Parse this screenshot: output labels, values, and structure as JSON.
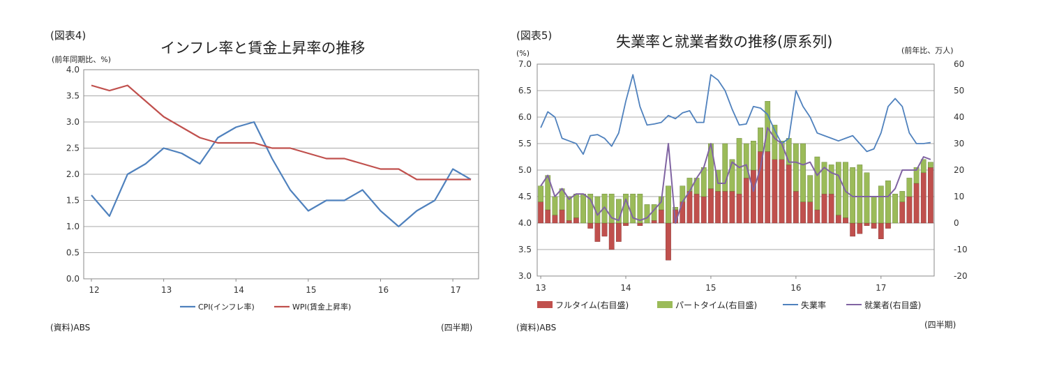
{
  "left": {
    "figure_no": "(図表4)",
    "title": "インフレ率と賃金上昇率の推移",
    "unit": "(前年同期比、%)",
    "source": "(資料)ABS",
    "period_note": "(四半期)"
  },
  "right": {
    "figure_no": "(図表5)",
    "title": "失業率と就業者数の推移(原系列)",
    "unit_left": "(%)",
    "unit_right": "(前年比、万人)",
    "source": "(資料)ABS",
    "period_note": "(四半期)"
  },
  "chart_data": [
    {
      "type": "line",
      "title": "インフレ率と賃金上昇率の推移",
      "ylabel": "(前年同期比、%)",
      "ylim": [
        0,
        4
      ],
      "yticks": [
        "0.0",
        "0.5",
        "1.0",
        "1.5",
        "2.0",
        "2.5",
        "3.0",
        "3.5",
        "4.0"
      ],
      "xtick_labels": [
        "12",
        "13",
        "14",
        "15",
        "16",
        "17"
      ],
      "x_start_quarter": "2012Q1",
      "grid": true,
      "legend_position": "bottom",
      "colors": {
        "cpi": "#4f81bd",
        "wpi": "#c0504d"
      },
      "series": [
        {
          "name": "CPI(インフレ率)",
          "values": [
            1.6,
            1.2,
            2.0,
            2.2,
            2.5,
            2.4,
            2.2,
            2.7,
            2.9,
            3.0,
            2.3,
            1.7,
            1.3,
            1.5,
            1.5,
            1.7,
            1.3,
            1.0,
            1.3,
            1.5,
            2.1,
            1.9
          ]
        },
        {
          "name": "WPI(賃金上昇率)",
          "values": [
            3.7,
            3.6,
            3.7,
            3.4,
            3.1,
            2.9,
            2.7,
            2.6,
            2.6,
            2.6,
            2.5,
            2.5,
            2.4,
            2.3,
            2.3,
            2.2,
            2.1,
            2.1,
            1.9,
            1.9,
            1.9,
            1.9
          ]
        }
      ]
    },
    {
      "type": "bar+line",
      "title": "失業率と就業者数の推移(原系列)",
      "ylim_left": [
        3.0,
        7.0
      ],
      "ylim_right": [
        -20,
        60
      ],
      "yticks_left": [
        "3.0",
        "3.5",
        "4.0",
        "4.5",
        "5.0",
        "5.5",
        "6.0",
        "6.5",
        "7.0"
      ],
      "yticks_right": [
        "-20",
        "-10",
        "0",
        "10",
        "20",
        "30",
        "40",
        "50",
        "60"
      ],
      "xtick_labels": [
        "13",
        "14",
        "15",
        "16",
        "17"
      ],
      "x_start_month": "2013-01",
      "grid": true,
      "legend_position": "bottom",
      "colors": {
        "fulltime": "#c0504d",
        "parttime": "#9bbb59",
        "unemployment": "#4f81bd",
        "employed": "#8064a2"
      },
      "series": [
        {
          "name": "フルタイム(右目盛)",
          "axis": "right",
          "values": [
            8,
            5,
            3,
            5,
            1,
            2,
            0,
            -2,
            -7,
            -5,
            -10,
            -7,
            -1,
            0,
            -1,
            0,
            1,
            5,
            -14,
            5,
            8,
            12,
            11,
            10,
            13,
            12,
            12,
            12,
            11,
            17,
            20,
            27,
            27,
            24,
            24,
            22,
            12,
            8,
            8,
            5,
            11,
            11,
            3,
            2,
            -5,
            -4,
            -1,
            -2,
            -6,
            -2,
            0,
            8,
            10,
            15,
            19,
            21
          ]
        },
        {
          "name": "パートタイム(右目盛)",
          "axis": "right",
          "values": [
            6,
            13,
            7,
            8,
            9,
            9,
            11,
            11,
            10,
            11,
            11,
            9,
            11,
            11,
            11,
            7,
            6,
            5,
            14,
            1,
            6,
            5,
            6,
            11,
            17,
            8,
            18,
            12,
            21,
            13,
            11,
            9,
            19,
            13,
            7,
            10,
            18,
            22,
            10,
            20,
            12,
            11,
            20,
            21,
            21,
            22,
            19,
            10,
            14,
            16,
            11,
            4,
            7,
            6,
            5,
            2
          ]
        },
        {
          "name": "失業率",
          "axis": "left",
          "values": [
            5.8,
            6.1,
            6.0,
            5.6,
            5.55,
            5.5,
            5.3,
            5.65,
            5.67,
            5.6,
            5.45,
            5.7,
            6.3,
            6.8,
            6.2,
            5.85,
            5.87,
            5.9,
            6.03,
            5.97,
            6.08,
            6.12,
            5.9,
            5.9,
            6.8,
            6.7,
            6.5,
            6.15,
            5.85,
            5.87,
            6.2,
            6.17,
            6.05,
            5.75,
            5.5,
            5.6,
            6.5,
            6.2,
            6.0,
            5.7,
            5.65,
            5.6,
            5.55,
            5.6,
            5.65,
            5.5,
            5.35,
            5.4,
            5.7,
            6.2,
            6.35,
            6.2,
            5.7,
            5.5,
            5.5,
            5.52
          ]
        },
        {
          "name": "就業者(右目盛)",
          "axis": "right",
          "values": [
            14,
            18,
            10,
            13,
            9,
            11,
            11,
            9,
            3,
            6,
            2,
            1,
            9,
            2,
            1,
            2,
            5,
            8,
            30,
            0,
            8,
            12,
            17,
            21,
            30,
            15,
            15,
            23,
            21,
            22,
            12,
            21,
            36,
            32,
            30,
            23,
            23,
            22,
            23,
            18,
            21,
            19,
            18,
            12,
            10,
            10,
            10,
            10,
            10,
            10,
            13,
            20,
            20,
            20,
            25,
            24
          ]
        }
      ]
    }
  ]
}
